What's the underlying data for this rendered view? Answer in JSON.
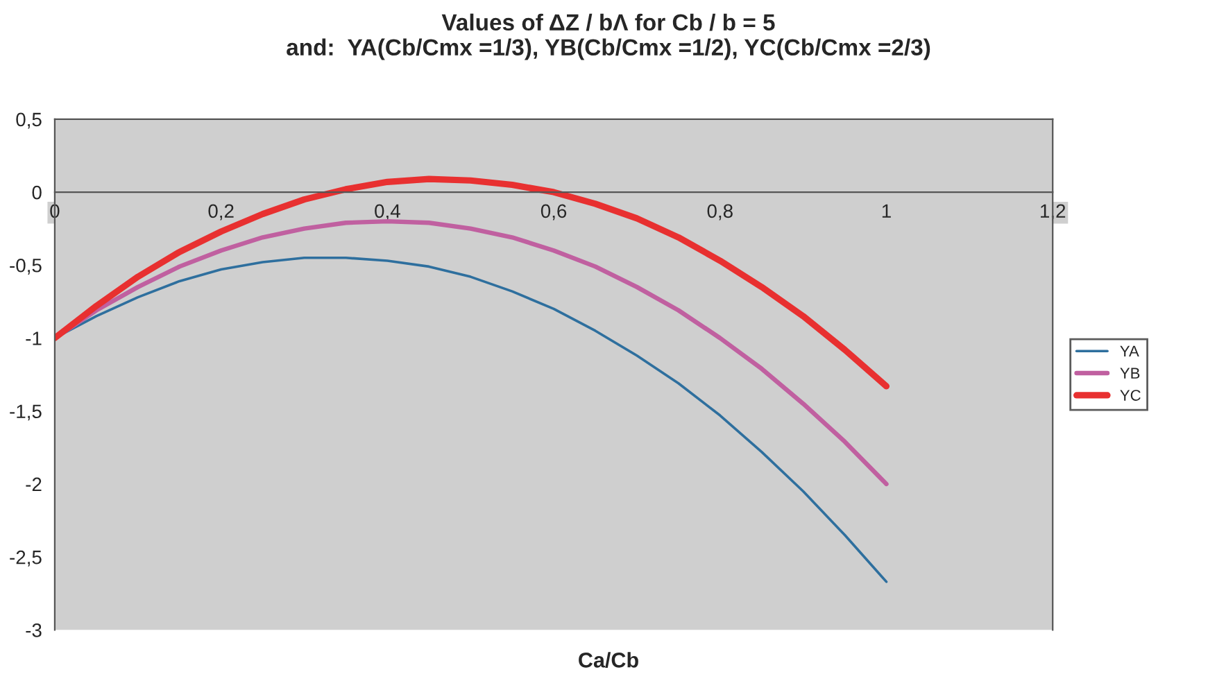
{
  "chart_data": {
    "type": "line",
    "title": "Values of ΔZ / bΛ for Cb / b = 5\nand:  YA(Cb/Cmx =1/3), YB(Cb/Cmx =1/2), YC(Cb/Cmx =2/3)",
    "xlabel": "Ca/Cb",
    "x": [
      0,
      0.05,
      0.1,
      0.15,
      0.2,
      0.25,
      0.3,
      0.35,
      0.4,
      0.45,
      0.5,
      0.55,
      0.6,
      0.65,
      0.7,
      0.75,
      0.8,
      0.85,
      0.9,
      0.95,
      1
    ],
    "series": [
      {
        "name": "YA",
        "color": "#2e6f9e",
        "values": [
          -1,
          -0.85,
          -0.72,
          -0.61,
          -0.53,
          -0.48,
          -0.45,
          -0.45,
          -0.47,
          -0.51,
          -0.58,
          -0.68,
          -0.8,
          -0.95,
          -1.12,
          -1.31,
          -1.53,
          -1.78,
          -2.05,
          -2.35,
          -2.67
        ]
      },
      {
        "name": "YB",
        "color": "#c060a0",
        "values": [
          -1,
          -0.81,
          -0.65,
          -0.51,
          -0.4,
          -0.31,
          -0.25,
          -0.21,
          -0.2,
          -0.21,
          -0.25,
          -0.31,
          -0.4,
          -0.51,
          -0.65,
          -0.81,
          -1,
          -1.21,
          -1.45,
          -1.71,
          -2
        ]
      },
      {
        "name": "YC",
        "color": "#e83030",
        "values": [
          -1,
          -0.78,
          -0.58,
          -0.41,
          -0.27,
          -0.15,
          -0.05,
          0.02,
          0.07,
          0.09,
          0.08,
          0.05,
          0,
          -0.08,
          -0.18,
          -0.31,
          -0.47,
          -0.65,
          -0.85,
          -1.08,
          -1.33
        ]
      }
    ],
    "xlim": [
      0,
      1.2
    ],
    "xticks": [
      0,
      {
        "value": 0.2,
        "label": "0,2"
      },
      {
        "value": 0.4,
        "label": "0,4"
      },
      {
        "value": 0.6,
        "label": "0,6"
      },
      {
        "value": 0.8,
        "label": "0,8"
      },
      1,
      {
        "value": 1.2,
        "label": "1,2"
      }
    ],
    "ylim": [
      -3,
      0.5
    ],
    "yticks": [
      {
        "value": 0.5,
        "label": "0,5"
      },
      0,
      {
        "value": -0.5,
        "label": "-0,5"
      },
      -1,
      {
        "value": -1.5,
        "label": "-1,5"
      },
      -2,
      {
        "value": -2.5,
        "label": "-2,5"
      },
      -3
    ],
    "grid": false,
    "legend": "right",
    "marker": "none",
    "line_style": "solid"
  }
}
